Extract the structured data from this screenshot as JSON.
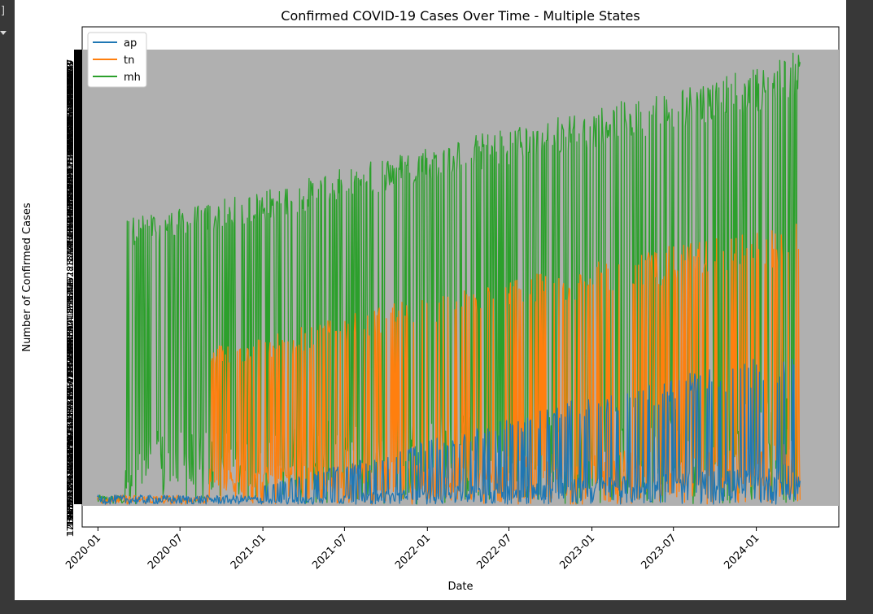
{
  "notebook": {
    "cell_marker": "]",
    "collapse_icon": "chevron-down-icon"
  },
  "chart_data": {
    "type": "line",
    "title": "Confirmed COVID-19 Cases Over Time - Multiple States",
    "xlabel": "Date",
    "ylabel": "Number of Confirmed Cases",
    "x_tick_labels": [
      "2020-01",
      "2020-07",
      "2021-01",
      "2021-07",
      "2022-01",
      "2022-07",
      "2023-01",
      "2023-07",
      "2024-01"
    ],
    "x_range": [
      "2019-11-27",
      "2024-07-02"
    ],
    "x_data_range": [
      "2019-12-31",
      "2024-04-07"
    ],
    "y_tick_labels": "overlapping, illegible (categorical string values)",
    "plot_background": "#b0b0b0",
    "grid": false,
    "legend_position": "top-left",
    "series": [
      {
        "name": "ap",
        "color": "#1f77b4",
        "upper_envelope": [
          {
            "date": "2021-01-01",
            "level": 0.04
          },
          {
            "date": "2022-01-01",
            "level": 0.14
          },
          {
            "date": "2023-01-01",
            "level": 0.24
          },
          {
            "date": "2024-01-01",
            "level": 0.32
          },
          {
            "date": "2024-04-07",
            "level": 0.34
          }
        ]
      },
      {
        "name": "tn",
        "color": "#ff7f0e",
        "upper_envelope": [
          {
            "date": "2020-09-01",
            "level": 0.35
          },
          {
            "date": "2021-01-01",
            "level": 0.37
          },
          {
            "date": "2022-01-01",
            "level": 0.46
          },
          {
            "date": "2023-01-01",
            "level": 0.53
          },
          {
            "date": "2023-07-01",
            "level": 0.57
          },
          {
            "date": "2024-04-07",
            "level": 0.62
          }
        ]
      },
      {
        "name": "mh",
        "color": "#2ca02c",
        "upper_envelope": [
          {
            "date": "2020-03-01",
            "level": 0.63
          },
          {
            "date": "2020-07-01",
            "level": 0.65
          },
          {
            "date": "2021-01-01",
            "level": 0.69
          },
          {
            "date": "2022-01-01",
            "level": 0.79
          },
          {
            "date": "2023-01-01",
            "level": 0.87
          },
          {
            "date": "2024-01-01",
            "level": 0.96
          },
          {
            "date": "2024-04-07",
            "level": 1.0
          }
        ]
      }
    ]
  }
}
